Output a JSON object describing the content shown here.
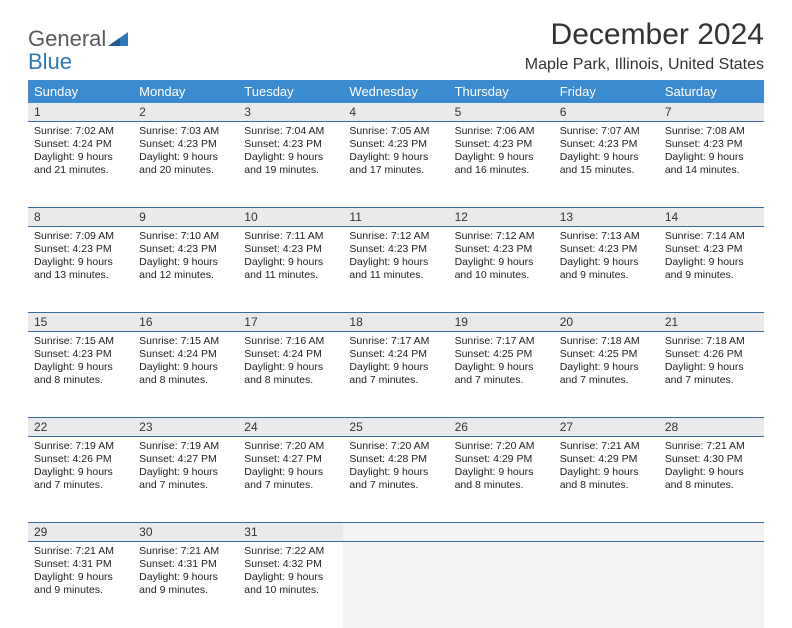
{
  "logo": {
    "word1": "General",
    "word2": "Blue"
  },
  "title": {
    "month": "December 2024",
    "location": "Maple Park, Illinois, United States"
  },
  "colors": {
    "header_bg": "#3b8bd0",
    "header_fg": "#ffffff",
    "daynum_bg": "#eaeaea",
    "row_border": "#3b6c9e",
    "logo_blue": "#2e77b8",
    "text": "#222222",
    "empty_bg": "#f3f3f3"
  },
  "layout": {
    "columns": 7,
    "first_day_index": 0
  },
  "weekdays": [
    "Sunday",
    "Monday",
    "Tuesday",
    "Wednesday",
    "Thursday",
    "Friday",
    "Saturday"
  ],
  "days": [
    {
      "n": 1,
      "sunrise": "7:02 AM",
      "sunset": "4:24 PM",
      "dl_h": 9,
      "dl_m": 21
    },
    {
      "n": 2,
      "sunrise": "7:03 AM",
      "sunset": "4:23 PM",
      "dl_h": 9,
      "dl_m": 20
    },
    {
      "n": 3,
      "sunrise": "7:04 AM",
      "sunset": "4:23 PM",
      "dl_h": 9,
      "dl_m": 19
    },
    {
      "n": 4,
      "sunrise": "7:05 AM",
      "sunset": "4:23 PM",
      "dl_h": 9,
      "dl_m": 17
    },
    {
      "n": 5,
      "sunrise": "7:06 AM",
      "sunset": "4:23 PM",
      "dl_h": 9,
      "dl_m": 16
    },
    {
      "n": 6,
      "sunrise": "7:07 AM",
      "sunset": "4:23 PM",
      "dl_h": 9,
      "dl_m": 15
    },
    {
      "n": 7,
      "sunrise": "7:08 AM",
      "sunset": "4:23 PM",
      "dl_h": 9,
      "dl_m": 14
    },
    {
      "n": 8,
      "sunrise": "7:09 AM",
      "sunset": "4:23 PM",
      "dl_h": 9,
      "dl_m": 13
    },
    {
      "n": 9,
      "sunrise": "7:10 AM",
      "sunset": "4:23 PM",
      "dl_h": 9,
      "dl_m": 12
    },
    {
      "n": 10,
      "sunrise": "7:11 AM",
      "sunset": "4:23 PM",
      "dl_h": 9,
      "dl_m": 11
    },
    {
      "n": 11,
      "sunrise": "7:12 AM",
      "sunset": "4:23 PM",
      "dl_h": 9,
      "dl_m": 11
    },
    {
      "n": 12,
      "sunrise": "7:12 AM",
      "sunset": "4:23 PM",
      "dl_h": 9,
      "dl_m": 10
    },
    {
      "n": 13,
      "sunrise": "7:13 AM",
      "sunset": "4:23 PM",
      "dl_h": 9,
      "dl_m": 9
    },
    {
      "n": 14,
      "sunrise": "7:14 AM",
      "sunset": "4:23 PM",
      "dl_h": 9,
      "dl_m": 9
    },
    {
      "n": 15,
      "sunrise": "7:15 AM",
      "sunset": "4:23 PM",
      "dl_h": 9,
      "dl_m": 8
    },
    {
      "n": 16,
      "sunrise": "7:15 AM",
      "sunset": "4:24 PM",
      "dl_h": 9,
      "dl_m": 8
    },
    {
      "n": 17,
      "sunrise": "7:16 AM",
      "sunset": "4:24 PM",
      "dl_h": 9,
      "dl_m": 8
    },
    {
      "n": 18,
      "sunrise": "7:17 AM",
      "sunset": "4:24 PM",
      "dl_h": 9,
      "dl_m": 7
    },
    {
      "n": 19,
      "sunrise": "7:17 AM",
      "sunset": "4:25 PM",
      "dl_h": 9,
      "dl_m": 7
    },
    {
      "n": 20,
      "sunrise": "7:18 AM",
      "sunset": "4:25 PM",
      "dl_h": 9,
      "dl_m": 7
    },
    {
      "n": 21,
      "sunrise": "7:18 AM",
      "sunset": "4:26 PM",
      "dl_h": 9,
      "dl_m": 7
    },
    {
      "n": 22,
      "sunrise": "7:19 AM",
      "sunset": "4:26 PM",
      "dl_h": 9,
      "dl_m": 7
    },
    {
      "n": 23,
      "sunrise": "7:19 AM",
      "sunset": "4:27 PM",
      "dl_h": 9,
      "dl_m": 7
    },
    {
      "n": 24,
      "sunrise": "7:20 AM",
      "sunset": "4:27 PM",
      "dl_h": 9,
      "dl_m": 7
    },
    {
      "n": 25,
      "sunrise": "7:20 AM",
      "sunset": "4:28 PM",
      "dl_h": 9,
      "dl_m": 7
    },
    {
      "n": 26,
      "sunrise": "7:20 AM",
      "sunset": "4:29 PM",
      "dl_h": 9,
      "dl_m": 8
    },
    {
      "n": 27,
      "sunrise": "7:21 AM",
      "sunset": "4:29 PM",
      "dl_h": 9,
      "dl_m": 8
    },
    {
      "n": 28,
      "sunrise": "7:21 AM",
      "sunset": "4:30 PM",
      "dl_h": 9,
      "dl_m": 8
    },
    {
      "n": 29,
      "sunrise": "7:21 AM",
      "sunset": "4:31 PM",
      "dl_h": 9,
      "dl_m": 9
    },
    {
      "n": 30,
      "sunrise": "7:21 AM",
      "sunset": "4:31 PM",
      "dl_h": 9,
      "dl_m": 9
    },
    {
      "n": 31,
      "sunrise": "7:22 AM",
      "sunset": "4:32 PM",
      "dl_h": 9,
      "dl_m": 10
    }
  ],
  "labels": {
    "sunrise": "Sunrise:",
    "sunset": "Sunset:",
    "daylight_prefix": "Daylight:",
    "hours_word": "hours",
    "and_word": "and",
    "minutes_word": "minutes."
  }
}
